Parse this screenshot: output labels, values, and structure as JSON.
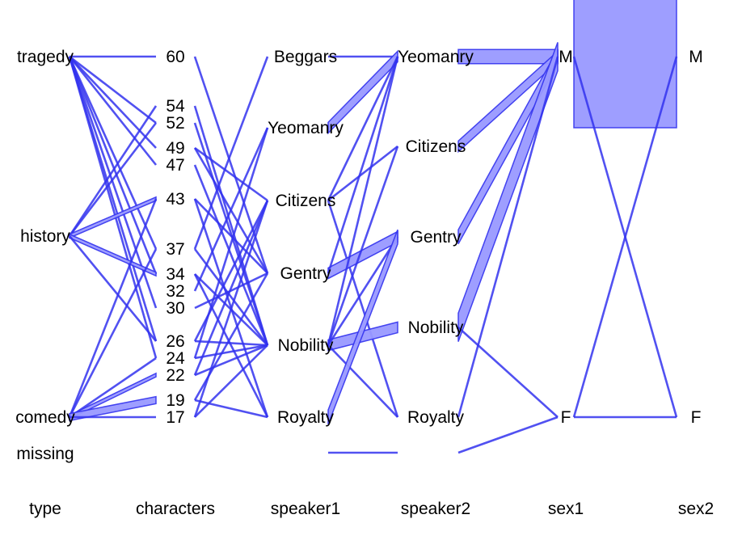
{
  "chart_data": {
    "type": "parallel-sets",
    "axes": [
      {
        "name": "type",
        "levels": [
          "tragedy",
          "history",
          "comedy",
          "missing"
        ]
      },
      {
        "name": "characters",
        "levels": [
          "60",
          "54",
          "52",
          "49",
          "47",
          "43",
          "37",
          "34",
          "32",
          "30",
          "26",
          "24",
          "22",
          "19",
          "17"
        ]
      },
      {
        "name": "speaker1",
        "levels": [
          "Beggars",
          "Yeomanry",
          "Citizens",
          "Gentry",
          "Nobility",
          "Royalty"
        ]
      },
      {
        "name": "speaker2",
        "levels": [
          "Yeomanry",
          "Citizens",
          "Gentry",
          "Nobility",
          "Royalty"
        ]
      },
      {
        "name": "sex1",
        "levels": [
          "M",
          "F"
        ]
      },
      {
        "name": "sex2",
        "levels": [
          "M",
          "F"
        ]
      }
    ],
    "ribbons": [
      [
        "tragedy",
        "60",
        0
      ],
      [
        "tragedy",
        "52",
        0
      ],
      [
        "tragedy",
        "49",
        0
      ],
      [
        "tragedy",
        "47",
        0
      ],
      [
        "tragedy",
        "37",
        0
      ],
      [
        "tragedy",
        "34",
        0
      ],
      [
        "tragedy",
        "30",
        0
      ],
      [
        "tragedy",
        "26",
        0
      ],
      [
        "tragedy",
        "24",
        0
      ],
      [
        "history",
        "54",
        0
      ],
      [
        "history",
        "52",
        0
      ],
      [
        "history",
        "43",
        1
      ],
      [
        "history",
        "34",
        1
      ],
      [
        "history",
        "26",
        0
      ],
      [
        "comedy",
        "43",
        0
      ],
      [
        "comedy",
        "37",
        0
      ],
      [
        "comedy",
        "24",
        0
      ],
      [
        "comedy",
        "22",
        1
      ],
      [
        "comedy",
        "19",
        2
      ],
      [
        "comedy",
        "17",
        0
      ],
      [
        "60",
        "Gentry",
        0
      ],
      [
        "54",
        "Nobility",
        0
      ],
      [
        "52",
        "Nobility",
        0
      ],
      [
        "49",
        "Citizens",
        0
      ],
      [
        "49",
        "Gentry",
        0
      ],
      [
        "47",
        "Nobility",
        0
      ],
      [
        "43",
        "Gentry",
        0
      ],
      [
        "43",
        "Royalty",
        0
      ],
      [
        "37",
        "Beggars",
        0
      ],
      [
        "37",
        "Nobility",
        0
      ],
      [
        "34",
        "Nobility",
        0
      ],
      [
        "34",
        "Royalty",
        0
      ],
      [
        "32",
        "Yeomanry",
        0
      ],
      [
        "30",
        "Gentry",
        0
      ],
      [
        "26",
        "Nobility",
        0
      ],
      [
        "26",
        "Citizens",
        0
      ],
      [
        "24",
        "Nobility",
        0
      ],
      [
        "24",
        "Yeomanry",
        0
      ],
      [
        "22",
        "Nobility",
        0
      ],
      [
        "22",
        "Citizens",
        0
      ],
      [
        "19",
        "Royalty",
        0
      ],
      [
        "19",
        "Gentry",
        0
      ],
      [
        "17",
        "Nobility",
        0
      ],
      [
        "17",
        "Citizens",
        0
      ],
      [
        "Beggars",
        "Yeomanry",
        0
      ],
      [
        "Yeomanry",
        "Yeomanry",
        3
      ],
      [
        "Citizens",
        "Citizens",
        0
      ],
      [
        "Citizens",
        "Yeomanry",
        0
      ],
      [
        "Citizens",
        "Royalty",
        0
      ],
      [
        "Gentry",
        "Gentry",
        3
      ],
      [
        "Gentry",
        "Yeomanry",
        0
      ],
      [
        "Nobility",
        "Nobility",
        3
      ],
      [
        "Nobility",
        "Gentry",
        0
      ],
      [
        "Nobility",
        "Citizens",
        0
      ],
      [
        "Nobility",
        "Yeomanry",
        0
      ],
      [
        "Nobility",
        "Royalty",
        0
      ],
      [
        "Royalty",
        "Gentry",
        4
      ],
      [
        "missing",
        "missing",
        0
      ],
      [
        "Yeomanry",
        "M",
        4
      ],
      [
        "Citizens",
        "M",
        3
      ],
      [
        "Gentry",
        "M",
        4
      ],
      [
        "Nobility",
        "M",
        8
      ],
      [
        "Nobility",
        "F",
        0
      ],
      [
        "Royalty",
        "M",
        0
      ],
      [
        "missing",
        "F",
        0
      ],
      [
        "M",
        "M",
        40
      ],
      [
        "M",
        "F",
        0
      ],
      [
        "F",
        "M",
        0
      ],
      [
        "F",
        "F",
        0
      ]
    ]
  }
}
